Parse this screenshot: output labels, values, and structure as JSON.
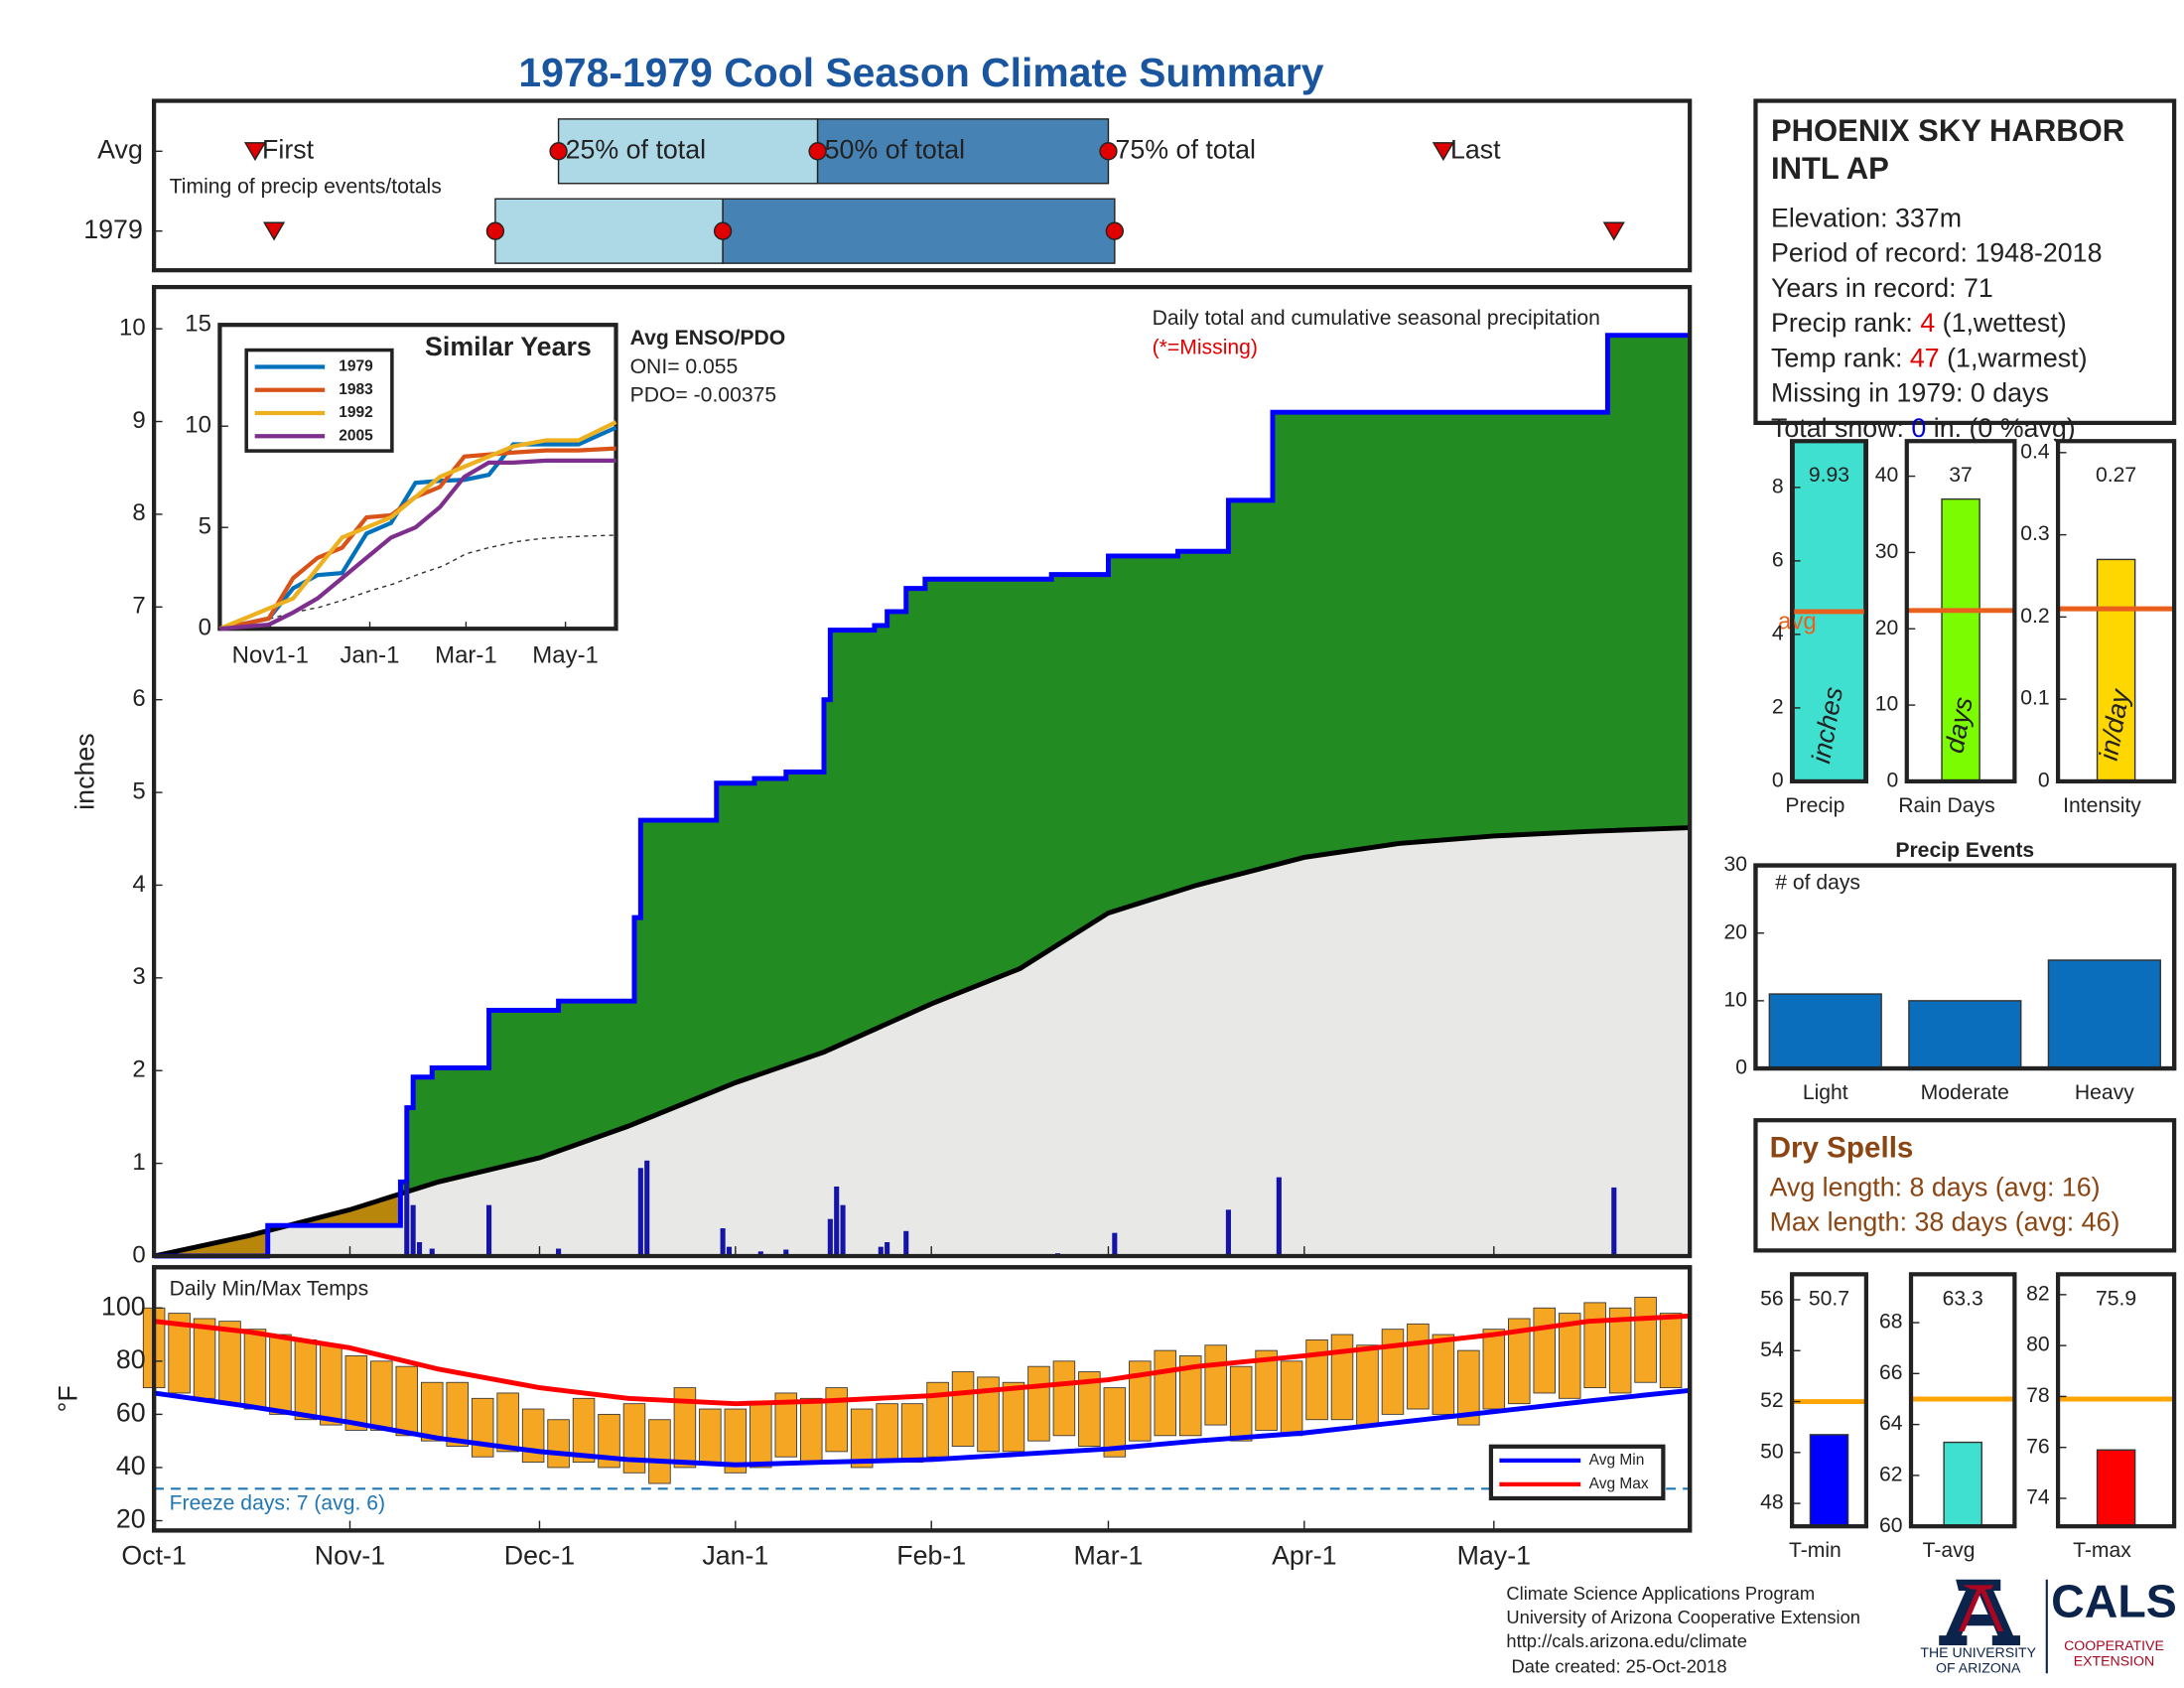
{
  "title": "1978-1979 Cool Season Climate Summary",
  "chart_data": [
    {
      "type": "timeline",
      "note": "Timing of precip events/totals",
      "labels": [
        "First",
        "25% of total",
        "50% of total",
        "75% of total",
        "Last"
      ],
      "series": [
        {
          "name": "Avg",
          "values": [
            16,
            64,
            105,
            151,
            204
          ]
        },
        {
          "name": "1979",
          "values": [
            19,
            54,
            90,
            152,
            231
          ]
        }
      ],
      "xlim": [
        0,
        243
      ],
      "colors": [
        "#add8e6",
        "#4682b4"
      ],
      "marker_color": "#e00000"
    },
    {
      "type": "area",
      "ylabel": "inches",
      "ylim": [
        0,
        10.45
      ],
      "yticks": [
        0,
        1,
        2,
        3,
        4,
        5,
        6,
        7,
        8,
        9,
        10
      ],
      "xlim": [
        0,
        243
      ],
      "annotations": [
        "Daily total and cumulative seasonal precipitation",
        "(*=Missing)"
      ],
      "cumulative": {
        "color": "#0000ff",
        "fill": "#228b22",
        "x": [
          0,
          18,
          39,
          40,
          41,
          44,
          53,
          64,
          76,
          77,
          89,
          95,
          100,
          106,
          107,
          114,
          116,
          119,
          122,
          142,
          151,
          162,
          170,
          177,
          230,
          243
        ],
        "values": [
          0,
          0.33,
          0.8,
          1.6,
          1.93,
          2.03,
          2.65,
          2.75,
          3.65,
          4.7,
          5.1,
          5.15,
          5.22,
          6.0,
          6.75,
          6.8,
          6.95,
          7.2,
          7.3,
          7.35,
          7.55,
          7.6,
          8.15,
          9.1,
          9.93,
          9.93
        ]
      },
      "average": {
        "color": "#000000",
        "fill": "#e8e8e6",
        "deficit_fill": "#b8860b",
        "x": [
          0,
          15,
          31,
          45,
          61,
          75,
          92,
          106,
          123,
          137,
          151,
          165,
          182,
          197,
          212,
          227,
          243
        ],
        "values": [
          0,
          0.22,
          0.5,
          0.8,
          1.06,
          1.4,
          1.87,
          2.2,
          2.72,
          3.1,
          3.7,
          4.0,
          4.3,
          4.45,
          4.53,
          4.58,
          4.62
        ]
      },
      "daily": {
        "color": "#1414a8",
        "x": [
          40,
          41,
          42,
          44,
          53,
          64,
          77,
          78,
          90,
          91,
          96,
          100,
          107,
          108,
          109,
          115,
          116,
          119,
          143,
          152,
          170,
          178,
          231
        ],
        "values": [
          0.8,
          0.55,
          0.15,
          0.08,
          0.55,
          0.08,
          0.95,
          1.03,
          0.3,
          0.1,
          0.05,
          0.07,
          0.4,
          0.75,
          0.55,
          0.1,
          0.15,
          0.27,
          0.03,
          0.25,
          0.5,
          0.85,
          0.74
        ]
      }
    },
    {
      "type": "line",
      "title": "Similar Years",
      "ylim": [
        0,
        15
      ],
      "yticks": [
        0,
        5,
        10,
        15
      ],
      "xlim": [
        0,
        243
      ],
      "xticks": [
        {
          "value": 31,
          "label": "Nov1-1"
        },
        {
          "value": 92,
          "label": "Jan-1"
        },
        {
          "value": 151,
          "label": "Mar-1"
        },
        {
          "value": 212,
          "label": "May-1"
        }
      ],
      "legend": "upper left",
      "x": [
        0,
        30,
        45,
        60,
        75,
        90,
        105,
        120,
        135,
        150,
        165,
        180,
        200,
        220,
        243
      ],
      "series": [
        {
          "name": "1979",
          "color": "#0072bd",
          "values": [
            0,
            0.5,
            2.0,
            2.65,
            2.75,
            4.7,
            5.22,
            7.2,
            7.3,
            7.35,
            7.6,
            9.1,
            9.1,
            9.1,
            9.93
          ]
        },
        {
          "name": "1983",
          "color": "#d95319",
          "values": [
            0,
            0.5,
            2.5,
            3.5,
            4.0,
            5.5,
            5.6,
            6.5,
            7.0,
            8.5,
            8.6,
            8.7,
            8.8,
            8.8,
            8.9
          ]
        },
        {
          "name": "1992",
          "color": "#edb120",
          "values": [
            0,
            1.0,
            1.5,
            3.0,
            4.5,
            5.0,
            5.5,
            6.5,
            7.5,
            8.0,
            8.5,
            9.0,
            9.3,
            9.3,
            10.2
          ]
        },
        {
          "name": "2005",
          "color": "#7e2f8e",
          "values": [
            0,
            0.2,
            0.8,
            1.5,
            2.5,
            3.5,
            4.5,
            5.0,
            6.0,
            7.5,
            8.2,
            8.2,
            8.3,
            8.3,
            8.3
          ]
        }
      ],
      "enso": [
        "Avg ENSO/PDO",
        "ONI= 0.055",
        "PDO= -0.00375"
      ]
    },
    {
      "type": "range",
      "title": "Daily Min/Max Temps",
      "ylabel": "°F",
      "ylim": [
        16.3,
        115.3
      ],
      "yticks": [
        20,
        40,
        60,
        80,
        100
      ],
      "xlim": [
        0,
        243
      ],
      "xticks": [
        {
          "value": 0,
          "label": "Oct-1"
        },
        {
          "value": 31,
          "label": "Nov-1"
        },
        {
          "value": 61,
          "label": "Dec-1"
        },
        {
          "value": 92,
          "label": "Jan-1"
        },
        {
          "value": 123,
          "label": "Feb-1"
        },
        {
          "value": 151,
          "label": "Mar-1"
        },
        {
          "value": 182,
          "label": "Apr-1"
        },
        {
          "value": 212,
          "label": "May-1"
        }
      ],
      "color": "#f5a623",
      "x": [
        0,
        4,
        8,
        12,
        16,
        20,
        24,
        28,
        32,
        36,
        40,
        44,
        48,
        52,
        56,
        60,
        64,
        68,
        72,
        76,
        80,
        84,
        88,
        92,
        96,
        100,
        104,
        108,
        112,
        116,
        120,
        124,
        128,
        132,
        136,
        140,
        144,
        148,
        152,
        156,
        160,
        164,
        168,
        172,
        176,
        180,
        184,
        188,
        192,
        196,
        200,
        204,
        208,
        212,
        216,
        220,
        224,
        228,
        232,
        236,
        240
      ],
      "min": [
        70,
        68,
        66,
        64,
        62,
        60,
        58,
        56,
        54,
        54,
        52,
        50,
        48,
        44,
        46,
        42,
        40,
        42,
        40,
        38,
        34,
        40,
        42,
        38,
        40,
        44,
        42,
        46,
        40,
        42,
        42,
        44,
        48,
        46,
        46,
        50,
        52,
        48,
        44,
        50,
        52,
        52,
        56,
        50,
        54,
        52,
        58,
        58,
        56,
        60,
        62,
        60,
        56,
        62,
        64,
        68,
        66,
        70,
        68,
        72,
        70
      ],
      "max": [
        100,
        98,
        96,
        95,
        92,
        90,
        88,
        86,
        82,
        80,
        78,
        72,
        72,
        66,
        68,
        62,
        58,
        66,
        60,
        64,
        58,
        70,
        62,
        62,
        64,
        68,
        66,
        70,
        62,
        64,
        64,
        72,
        76,
        74,
        72,
        78,
        80,
        76,
        70,
        80,
        84,
        82,
        86,
        78,
        84,
        80,
        88,
        90,
        86,
        92,
        94,
        90,
        84,
        92,
        96,
        100,
        98,
        102,
        100,
        104,
        98
      ],
      "avg_series": [
        {
          "name": "Avg Min",
          "color": "#0000ff",
          "x": [
            0,
            15,
            31,
            45,
            61,
            75,
            92,
            106,
            123,
            137,
            151,
            165,
            182,
            197,
            212,
            227,
            243
          ],
          "values": [
            68,
            63,
            57,
            51,
            46,
            43,
            41,
            42,
            43,
            45,
            47,
            50,
            53,
            57,
            61,
            65,
            69
          ]
        },
        {
          "name": "Avg Max",
          "color": "#ff0000",
          "x": [
            0,
            15,
            31,
            45,
            61,
            75,
            92,
            106,
            123,
            137,
            151,
            165,
            182,
            197,
            212,
            227,
            243
          ],
          "values": [
            95,
            91,
            85,
            77,
            70,
            66,
            64,
            65,
            67,
            70,
            73,
            78,
            82,
            86,
            90,
            95,
            97
          ]
        }
      ],
      "legend": "lower right",
      "freeze": {
        "value": 32,
        "label": "Freeze days: 7 (avg. 6)",
        "color": "#1f77b4"
      }
    },
    {
      "type": "gauges",
      "avg_color": "#e8601c",
      "panels": [
        {
          "label": "Precip",
          "value": 9.93,
          "unit": "inches",
          "avg": 4.62,
          "avg_label": "avg",
          "color": "#40e0d0",
          "ylim": [
            0,
            9.26
          ],
          "yticks": [
            0,
            2,
            4,
            6,
            8
          ]
        },
        {
          "label": "Rain Days",
          "value": 37,
          "unit": "days",
          "avg": 22.4,
          "color": "#7cfc00",
          "ylim": [
            0,
            44.6
          ],
          "yticks": [
            0,
            10,
            20,
            30,
            40
          ]
        },
        {
          "label": "Intensity",
          "value": 0.27,
          "unit": "in/day",
          "avg": 0.21,
          "color": "#ffd700",
          "ylim": [
            0,
            0.414
          ],
          "yticks": [
            0,
            0.1,
            0.2,
            0.3,
            0.4
          ]
        }
      ]
    },
    {
      "type": "bar",
      "title": "Precip Events",
      "ylabel": "# of days",
      "categories": [
        "Light",
        "Moderate",
        "Heavy"
      ],
      "values": [
        11,
        10,
        16
      ],
      "color": "#0a6ebd",
      "ylim": [
        0,
        30
      ],
      "yticks": [
        0,
        10,
        20,
        30
      ]
    },
    {
      "type": "gauges",
      "avg_color": "#ffa500",
      "panels": [
        {
          "label": "T-min",
          "value": 50.7,
          "avg": 52,
          "color": "#0000ff",
          "ylim": [
            47.1,
            57
          ],
          "yticks": [
            48,
            50,
            52,
            54,
            56
          ]
        },
        {
          "label": "T-avg",
          "value": 63.3,
          "avg": 65,
          "color": "#40e0d0",
          "ylim": [
            60,
            69.9
          ],
          "yticks": [
            60,
            62,
            64,
            66,
            68
          ]
        },
        {
          "label": "T-max",
          "value": 75.9,
          "avg": 77.9,
          "color": "#ff0000",
          "ylim": [
            72.9,
            82.8
          ],
          "yticks": [
            74,
            76,
            78,
            80,
            82
          ]
        }
      ]
    }
  ],
  "station": {
    "name_lines": [
      "PHOENIX SKY HARBOR",
      "INTL AP"
    ],
    "lines": [
      [
        "Elevation: 337m"
      ],
      [
        "Period of record: 1948-2018"
      ],
      [
        "Years in record: 71"
      ],
      [
        "Precip rank: ",
        "4",
        " (1,wettest)"
      ],
      [
        "Temp rank: ",
        "47",
        " (1,warmest)"
      ],
      [
        "Missing in 1979: 0 days"
      ],
      [
        "Total snow: ",
        "0",
        " in. (0 %avg)"
      ]
    ],
    "highlight_colors": [
      null,
      null,
      null,
      "#e00000",
      "#e00000",
      null,
      "#0000d0"
    ]
  },
  "dry_spells": {
    "title": "Dry Spells",
    "lines": [
      "Avg length: 8 days (avg: 16)",
      "Max length: 38 days (avg: 46)"
    ]
  },
  "footer": {
    "lines": [
      "Climate Science Applications Program",
      "University of Arizona Cooperative Extension",
      "http://cals.arizona.edu/climate",
      " Date created: 25-Oct-2018"
    ],
    "logo": [
      "THE UNIVERSITY",
      "OF ARIZONA",
      "CALS",
      "COOPERATIVE",
      "EXTENSION"
    ]
  }
}
